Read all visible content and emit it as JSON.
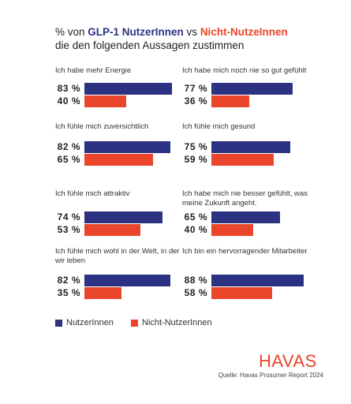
{
  "title": {
    "prefix": "% von ",
    "users_label": "GLP-1 NutzerInnen",
    "vs": " vs ",
    "nonusers_label": "Nicht-NutzeInnen",
    "line2": "die den folgenden Aussagen zustimmen"
  },
  "colors": {
    "users": "#2c3282",
    "nonusers": "#e8452b"
  },
  "chart_data": {
    "type": "bar",
    "orientation": "horizontal",
    "xlim": [
      0,
      100
    ],
    "series": [
      {
        "name": "NutzerInnen",
        "color": "#2c3282"
      },
      {
        "name": "Nicht-NutzerInnen",
        "color": "#e8452b"
      }
    ],
    "panels": [
      {
        "statement": "Ich habe mehr Energie",
        "users": 83,
        "nonusers": 40
      },
      {
        "statement": "Ich habe mich noch nie so gut gefühlt",
        "users": 77,
        "nonusers": 36
      },
      {
        "statement": "Ich fühle mich zuversichtlich",
        "users": 82,
        "nonusers": 65
      },
      {
        "statement": "Ich fühle mich gesund",
        "users": 75,
        "nonusers": 59
      },
      {
        "statement": "Ich fühle mich attraktiv",
        "users": 74,
        "nonusers": 53
      },
      {
        "statement": "Ich habe mich nie besser gefühlt, was meine Zukunft angeht.",
        "users": 65,
        "nonusers": 40
      },
      {
        "statement": "Ich fühle mich wohl in der Welt, in der wir leben",
        "users": 82,
        "nonusers": 35
      },
      {
        "statement": "Ich bin ein hervorragender Mitarbeiter",
        "users": 88,
        "nonusers": 58
      }
    ]
  },
  "legend": {
    "users": "NutzerInnen",
    "nonusers": "Nicht-NutzerInnen"
  },
  "brand": "HAVAS",
  "source": "Quelle: Havas Prosumer Report 2024"
}
